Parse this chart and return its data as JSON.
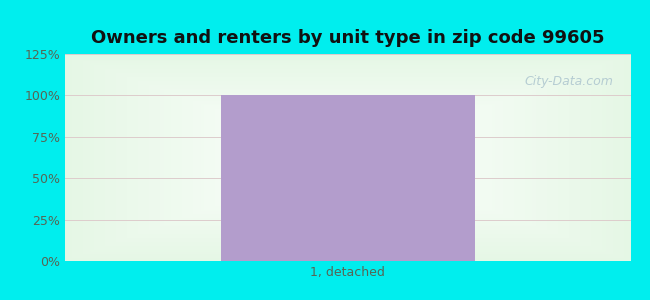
{
  "title": "Owners and renters by unit type in zip code 99605",
  "categories": [
    "1, detached"
  ],
  "values": [
    100
  ],
  "bar_color": "#b39dcc",
  "ylim": [
    0,
    125
  ],
  "ytick_vals": [
    0,
    25,
    50,
    75,
    100,
    125
  ],
  "ytick_labels": [
    "0%",
    "25%",
    "50%",
    "75%",
    "100%",
    "125%"
  ],
  "title_fontsize": 13,
  "tick_color": "#556655",
  "grid_color": "#ddcccc",
  "bg_outer_color": "#00eeee",
  "watermark_text": "City-Data.com",
  "watermark_color": "#b0c8d0",
  "bar_width": 0.45
}
